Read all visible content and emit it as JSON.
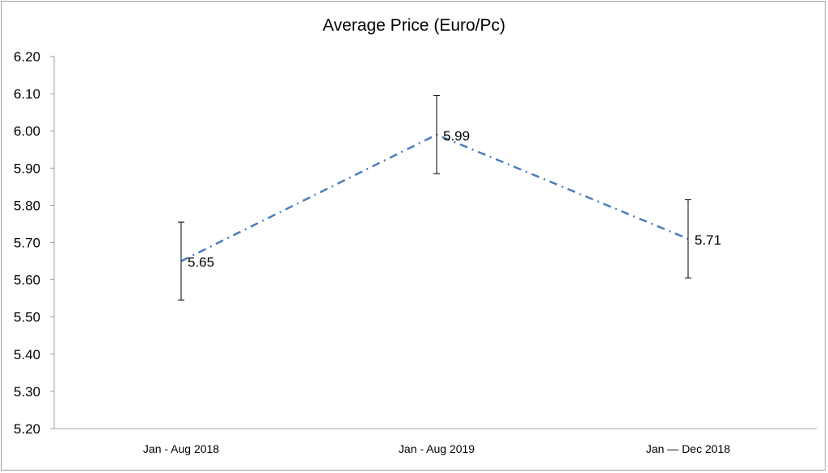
{
  "chart_data": {
    "type": "line",
    "title": "Average Price (Euro/Pc)",
    "xlabel": "",
    "ylabel": "",
    "categories": [
      "Jan - Aug 2018",
      "Jan - Aug 2019",
      "Jan — Dec 2018"
    ],
    "series": [
      {
        "name": "Average Price",
        "values": [
          5.65,
          5.99,
          5.71
        ],
        "error": [
          0.105,
          0.105,
          0.105
        ],
        "color": "#4a7ebb",
        "line_style": "dash-dot"
      }
    ],
    "data_labels": [
      "5.65",
      "5.99",
      "5.71"
    ],
    "ylim": [
      5.2,
      6.2
    ],
    "yticks": [
      "5.20",
      "5.30",
      "5.40",
      "5.50",
      "5.60",
      "5.70",
      "5.80",
      "5.90",
      "6.00",
      "6.10",
      "6.20"
    ],
    "grid": false,
    "legend": "none"
  }
}
